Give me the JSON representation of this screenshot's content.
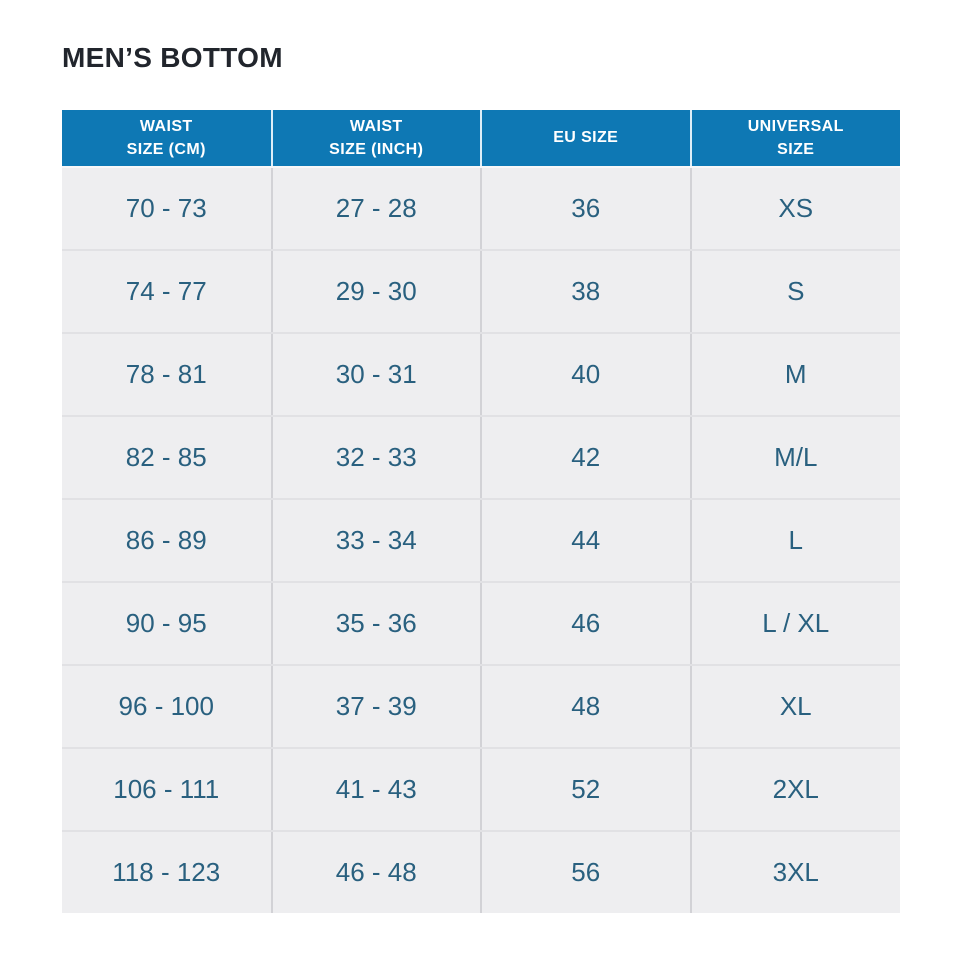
{
  "page": {
    "title": "MEN’S BOTTOM"
  },
  "table": {
    "headers": [
      {
        "id": "waist-cm",
        "label": "WAIST\nSIZE (CM)"
      },
      {
        "id": "waist-inch",
        "label": "WAIST\nSIZE (INCH)"
      },
      {
        "id": "eu-size",
        "label": "EU SIZE"
      },
      {
        "id": "universal-size",
        "label": "UNIVERSAL\nSIZE"
      }
    ]
  },
  "colors": {
    "header_bg": "#0e78b4",
    "header_text": "#ffffff",
    "row_bg": "#eeeef0",
    "cell_text": "#29607f",
    "title_text": "#21252c",
    "grid_vertical": "#d2d2d6",
    "grid_horizontal": "#e1e1e4"
  },
  "chart_data": {
    "type": "table",
    "title": "MEN’S BOTTOM",
    "columns": [
      "WAIST SIZE (CM)",
      "WAIST SIZE (INCH)",
      "EU SIZE",
      "UNIVERSAL SIZE"
    ],
    "rows": [
      [
        "70 - 73",
        "27 - 28",
        "36",
        "XS"
      ],
      [
        "74 - 77",
        "29 - 30",
        "38",
        "S"
      ],
      [
        "78 - 81",
        "30 - 31",
        "40",
        "M"
      ],
      [
        "82 - 85",
        "32 - 33",
        "42",
        "M/L"
      ],
      [
        "86 - 89",
        "33 - 34",
        "44",
        "L"
      ],
      [
        "90 - 95",
        "35 - 36",
        "46",
        "L / XL"
      ],
      [
        "96 - 100",
        "37 - 39",
        "48",
        "XL"
      ],
      [
        "106 - 111",
        "41 - 43",
        "52",
        "2XL"
      ],
      [
        "118 - 123",
        "46 - 48",
        "56",
        "3XL"
      ]
    ]
  }
}
